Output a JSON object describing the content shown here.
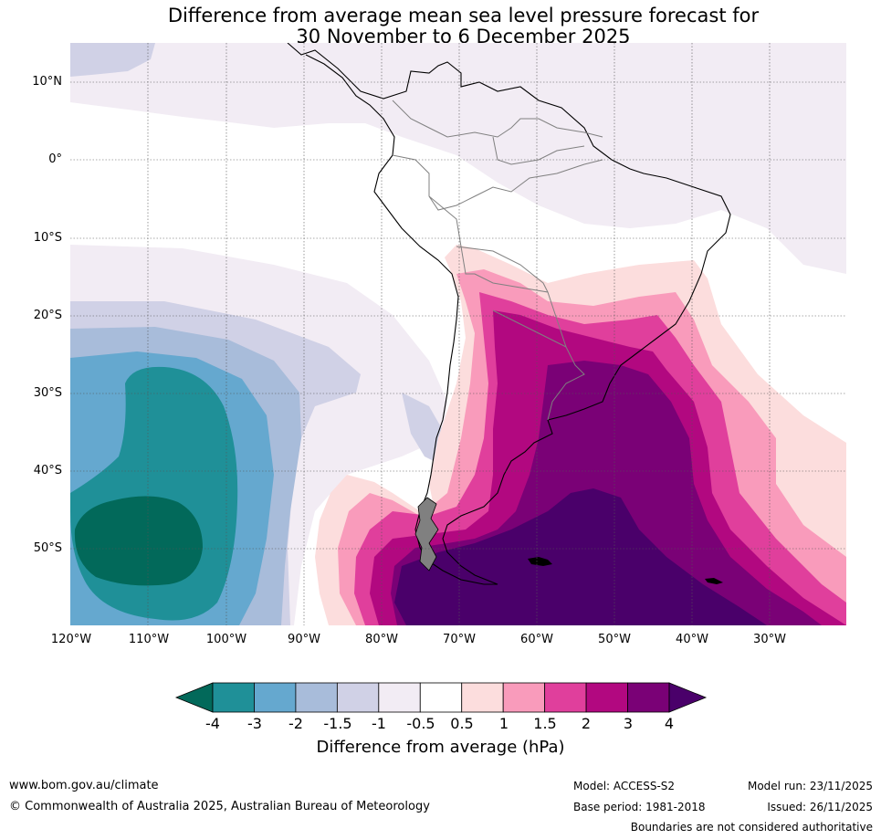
{
  "title_line1": "Difference from average mean sea level pressure forecast for",
  "title_line2": "30 November to 6 December 2025",
  "lat_labels": [
    "10°N",
    "0°",
    "10°S",
    "20°S",
    "30°S",
    "40°S",
    "50°S"
  ],
  "lon_labels": [
    "120°W",
    "110°W",
    "100°W",
    "90°W",
    "80°W",
    "70°W",
    "60°W",
    "50°W",
    "40°W",
    "30°W"
  ],
  "colorbar": {
    "ticks": [
      "-4",
      "-3",
      "-2",
      "-1.5",
      "-1",
      "-0.5",
      "0.5",
      "1",
      "1.5",
      "2",
      "3",
      "4"
    ],
    "colors": [
      "#02695a",
      "#1f9098",
      "#65a8cf",
      "#a8bcda",
      "#d0d1e6",
      "#f2ecf4",
      "#ffffff",
      "#fcdddd",
      "#f99bbb",
      "#e03f9c",
      "#b20880",
      "#7a0176",
      "#4a006a"
    ],
    "label": "Difference from average (hPa)"
  },
  "footer": {
    "website": "www.bom.gov.au/climate",
    "copyright": "© Commonwealth of Australia 2025, Australian Bureau of Meteorology",
    "model": "Model: ACCESS-S2",
    "model_run": "Model run: 23/11/2025",
    "base_period": "Base period: 1981-2018",
    "issued": "Issued: 26/11/2025",
    "disclaimer": "Boundaries are not considered authoritative"
  }
}
